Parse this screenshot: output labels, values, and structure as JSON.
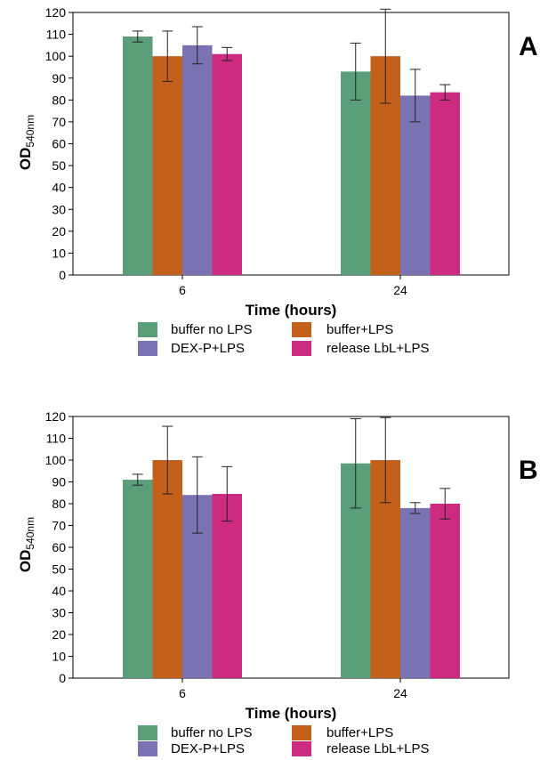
{
  "colors": {
    "buffer_no_lps": "#5b9f7a",
    "buffer_lps": "#c3601b",
    "dex_lps": "#7b72b3",
    "release_lps": "#cc2b7f"
  },
  "legend": [
    "buffer no LPS",
    "buffer+LPS",
    "DEX-P+LPS",
    "release LbL+LPS"
  ],
  "chart_data": [
    {
      "type": "bar",
      "panel_label": "A",
      "xlabel": "Time (hours)",
      "ylabel_main": "OD",
      "ylabel_sub": "540nm",
      "ylim": [
        0,
        120
      ],
      "yticks": [
        0,
        10,
        20,
        30,
        40,
        50,
        60,
        70,
        80,
        90,
        100,
        110,
        120
      ],
      "categories": [
        "6",
        "24"
      ],
      "series": [
        {
          "name": "buffer no LPS",
          "values": [
            109,
            93
          ],
          "errors": [
            2.5,
            13
          ]
        },
        {
          "name": "buffer+LPS",
          "values": [
            100,
            100
          ],
          "errors": [
            11.5,
            21.5
          ]
        },
        {
          "name": "DEX-P+LPS",
          "values": [
            105,
            82
          ],
          "errors": [
            8.5,
            12
          ]
        },
        {
          "name": "release LbL+LPS",
          "values": [
            101,
            83.5
          ],
          "errors": [
            3,
            3.5
          ]
        }
      ]
    },
    {
      "type": "bar",
      "panel_label": "B",
      "xlabel": "Time (hours)",
      "ylabel_main": "OD",
      "ylabel_sub": "540nm",
      "ylim": [
        0,
        120
      ],
      "yticks": [
        0,
        10,
        20,
        30,
        40,
        50,
        60,
        70,
        80,
        90,
        100,
        110,
        120
      ],
      "categories": [
        "6",
        "24"
      ],
      "series": [
        {
          "name": "buffer no LPS",
          "values": [
            91,
            98.5
          ],
          "errors": [
            2.5,
            20.5
          ]
        },
        {
          "name": "buffer+LPS",
          "values": [
            100,
            100
          ],
          "errors": [
            15.5,
            19.5
          ]
        },
        {
          "name": "DEX-P+LPS",
          "values": [
            84,
            78
          ],
          "errors": [
            17.5,
            2.5
          ]
        },
        {
          "name": "release LbL+LPS",
          "values": [
            84.5,
            80
          ],
          "errors": [
            12.5,
            7
          ]
        }
      ]
    }
  ]
}
